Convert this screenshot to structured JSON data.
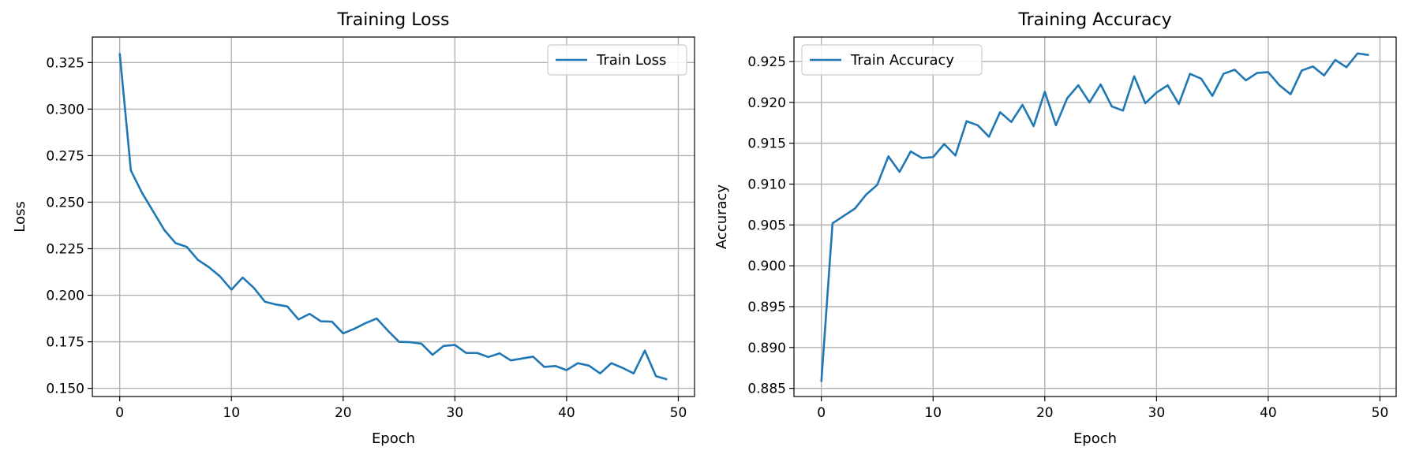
{
  "colors": {
    "series": "#1f77b4",
    "grid": "#b0b0b0",
    "axes": "#000000",
    "legend_border": "#cccccc"
  },
  "chart_data": [
    {
      "type": "line",
      "title": "Training Loss",
      "xlabel": "Epoch",
      "ylabel": "Loss",
      "xlim": [
        -2.45,
        51.45
      ],
      "ylim": [
        0.1456,
        0.3387
      ],
      "xticks": [
        0,
        10,
        20,
        30,
        40,
        50
      ],
      "yticks": [
        0.15,
        0.175,
        0.2,
        0.225,
        0.25,
        0.275,
        0.3,
        0.325
      ],
      "ytick_labels": [
        "0.150",
        "0.175",
        "0.200",
        "0.225",
        "0.250",
        "0.275",
        "0.300",
        "0.325"
      ],
      "grid": true,
      "legend_position": "upper right",
      "series": [
        {
          "name": "Train Loss",
          "x": [
            0,
            1,
            2,
            3,
            4,
            5,
            6,
            7,
            8,
            9,
            10,
            11,
            12,
            13,
            14,
            15,
            16,
            17,
            18,
            19,
            20,
            21,
            22,
            23,
            24,
            25,
            26,
            27,
            28,
            29,
            30,
            31,
            32,
            33,
            34,
            35,
            36,
            37,
            38,
            39,
            40,
            41,
            42,
            43,
            44,
            45,
            46,
            47,
            48,
            49
          ],
          "y": [
            0.33,
            0.267,
            0.255,
            0.245,
            0.235,
            0.228,
            0.226,
            0.219,
            0.215,
            0.21,
            0.203,
            0.2095,
            0.204,
            0.1965,
            0.195,
            0.194,
            0.187,
            0.19,
            0.186,
            0.1858,
            0.1795,
            0.182,
            0.185,
            0.1875,
            0.181,
            0.175,
            0.1748,
            0.174,
            0.168,
            0.1728,
            0.1733,
            0.169,
            0.169,
            0.1668,
            0.1688,
            0.165,
            0.166,
            0.167,
            0.1615,
            0.162,
            0.1598,
            0.1635,
            0.1622,
            0.158,
            0.1635,
            0.161,
            0.158,
            0.1703,
            0.1565,
            0.1548
          ]
        }
      ]
    },
    {
      "type": "line",
      "title": "Training Accuracy",
      "xlabel": "Epoch",
      "ylabel": "Accuracy",
      "xlim": [
        -2.45,
        51.45
      ],
      "ylim": [
        0.884,
        0.928
      ],
      "xticks": [
        0,
        10,
        20,
        30,
        40,
        50
      ],
      "yticks": [
        0.885,
        0.89,
        0.895,
        0.9,
        0.905,
        0.91,
        0.915,
        0.92,
        0.925
      ],
      "ytick_labels": [
        "0.885",
        "0.890",
        "0.895",
        "0.900",
        "0.905",
        "0.910",
        "0.915",
        "0.920",
        "0.925"
      ],
      "grid": true,
      "legend_position": "upper left",
      "series": [
        {
          "name": "Train Accuracy",
          "x": [
            0,
            1,
            2,
            3,
            4,
            5,
            6,
            7,
            8,
            9,
            10,
            11,
            12,
            13,
            14,
            15,
            16,
            17,
            18,
            19,
            20,
            21,
            22,
            23,
            24,
            25,
            26,
            27,
            28,
            29,
            30,
            31,
            32,
            33,
            34,
            35,
            36,
            37,
            38,
            39,
            40,
            41,
            42,
            43,
            44,
            45,
            46,
            47,
            48,
            49
          ],
          "y": [
            0.8858,
            0.9052,
            0.9061,
            0.907,
            0.9087,
            0.9099,
            0.9134,
            0.9115,
            0.914,
            0.9132,
            0.9133,
            0.9149,
            0.9135,
            0.9177,
            0.9172,
            0.9158,
            0.9188,
            0.9176,
            0.9197,
            0.9171,
            0.9213,
            0.9172,
            0.9205,
            0.9221,
            0.92,
            0.9222,
            0.9195,
            0.919,
            0.9232,
            0.9199,
            0.9212,
            0.9221,
            0.9198,
            0.9235,
            0.9229,
            0.9208,
            0.9235,
            0.924,
            0.9227,
            0.9236,
            0.9237,
            0.9221,
            0.921,
            0.9239,
            0.9244,
            0.9233,
            0.9252,
            0.9243,
            0.926,
            0.9258
          ]
        }
      ]
    }
  ]
}
